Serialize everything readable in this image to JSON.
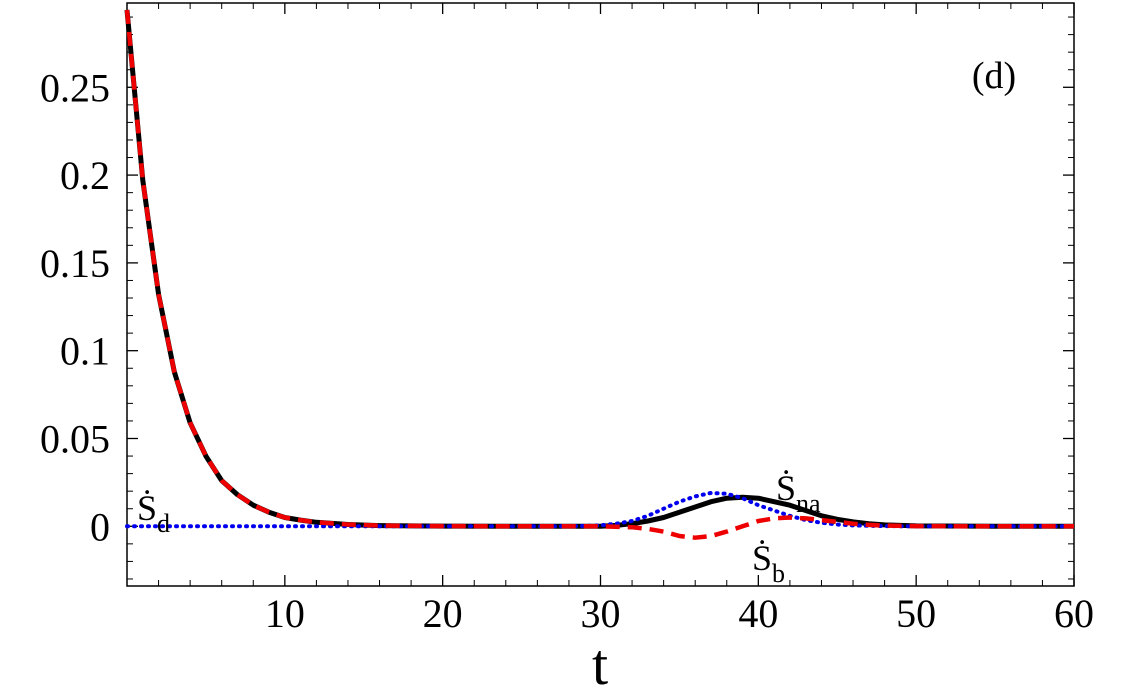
{
  "chart_data": {
    "type": "line",
    "panel_label": "(d)",
    "xlabel": "t",
    "ylabel": "",
    "xlim": [
      0,
      60
    ],
    "ylim": [
      -0.034,
      0.298
    ],
    "xticks": [
      10,
      20,
      30,
      40,
      50,
      60
    ],
    "xtick_labels": [
      "10",
      "20",
      "30",
      "40",
      "50",
      "60"
    ],
    "yticks": [
      0,
      0.05,
      0.1,
      0.15,
      0.2,
      0.25
    ],
    "ytick_labels": [
      "0",
      "0.05",
      "0.1",
      "0.15",
      "0.2",
      "0.25"
    ],
    "grid": false,
    "series": [
      {
        "name": "Ṡna",
        "label_main": "Ṡ",
        "label_sub": "na",
        "color": "#000000",
        "style": "solid",
        "x": [
          0,
          1,
          2,
          3,
          4,
          5,
          6,
          7,
          8,
          9,
          10,
          11,
          12,
          14,
          16,
          20,
          25,
          30,
          31,
          32,
          33,
          34,
          35,
          36,
          37,
          38,
          39,
          40,
          41,
          42,
          43,
          44,
          45,
          46,
          47,
          48,
          50,
          55,
          60
        ],
        "y": [
          0.294,
          0.197,
          0.132,
          0.088,
          0.059,
          0.04,
          0.026,
          0.018,
          0.012,
          0.008,
          0.005,
          0.0035,
          0.0023,
          0.001,
          0.0004,
          0.0001,
          0.0,
          0.0,
          0.0005,
          0.0015,
          0.003,
          0.005,
          0.008,
          0.011,
          0.014,
          0.016,
          0.0165,
          0.016,
          0.014,
          0.012,
          0.009,
          0.006,
          0.004,
          0.0025,
          0.0015,
          0.0008,
          0.0002,
          0.0,
          0.0
        ]
      },
      {
        "name": "Ṡd",
        "label_main": "Ṡ",
        "label_sub": "d",
        "color": "#0000ee",
        "style": "dotted",
        "x": [
          0,
          5,
          10,
          20,
          28,
          30,
          31,
          32,
          33,
          34,
          35,
          36,
          37,
          38,
          39,
          40,
          41,
          42,
          43,
          44,
          45,
          46,
          48,
          50,
          55,
          60
        ],
        "y": [
          0.0,
          0.0,
          0.0,
          0.0,
          0.0,
          0.0005,
          0.0015,
          0.003,
          0.006,
          0.01,
          0.014,
          0.017,
          0.019,
          0.0185,
          0.016,
          0.012,
          0.009,
          0.006,
          0.0035,
          0.002,
          0.001,
          0.0005,
          0.0001,
          0.0,
          0.0,
          0.0
        ]
      },
      {
        "name": "Ṡb",
        "label_main": "Ṡ",
        "label_sub": "b",
        "color": "#ee0000",
        "style": "dashed",
        "x": [
          0,
          1,
          2,
          3,
          4,
          5,
          6,
          7,
          8,
          9,
          10,
          11,
          12,
          14,
          16,
          20,
          25,
          28,
          30,
          32,
          33,
          34,
          35,
          36,
          37,
          38,
          39,
          40,
          41,
          42,
          43,
          44,
          45,
          46,
          47,
          48,
          50,
          55,
          60
        ],
        "y": [
          0.294,
          0.197,
          0.132,
          0.088,
          0.059,
          0.04,
          0.026,
          0.018,
          0.012,
          0.008,
          0.005,
          0.0035,
          0.0023,
          0.001,
          0.0004,
          0.0001,
          0.0,
          0.0,
          0.0,
          -0.0005,
          -0.0015,
          -0.003,
          -0.0055,
          -0.0065,
          -0.0055,
          -0.003,
          0.0,
          0.003,
          0.0045,
          0.005,
          0.0045,
          0.0035,
          0.0025,
          0.0015,
          0.0008,
          0.0004,
          0.0001,
          0.0,
          0.0
        ]
      }
    ],
    "annotations": [
      {
        "text_main": "Ṡ",
        "text_sub": "d",
        "series": "Ṡd"
      },
      {
        "text_main": "Ṡ",
        "text_sub": "na",
        "series": "Ṡna"
      },
      {
        "text_main": "Ṡ",
        "text_sub": "b",
        "series": "Ṡb"
      }
    ]
  }
}
